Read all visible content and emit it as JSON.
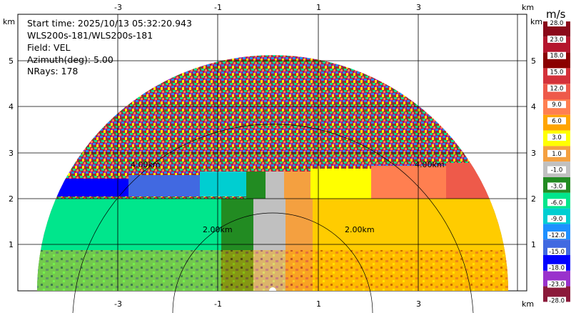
{
  "info": {
    "start_time": "Start time: 2025/10/13 05:32:20.943",
    "instrument": "WLS200s-181/WLS200s-181",
    "field": "Field: VEL",
    "azimuth": "Azimuth(deg): 5.00",
    "nrays": "NRays: 178"
  },
  "axes": {
    "x_unit": "km",
    "y_unit": "km",
    "x_ticks": [
      "-3",
      "-1",
      "1",
      "3"
    ],
    "y_ticks": [
      "1",
      "2",
      "3",
      "4",
      "5"
    ],
    "range_rings": [
      "2.00km",
      "2.00km",
      "4.00km",
      "4.00km"
    ]
  },
  "colorbar": {
    "unit": "m/s",
    "labels": [
      "28.0",
      "23.0",
      "18.0",
      "15.0",
      "12.0",
      "9.0",
      "6.0",
      "3.0",
      "1.0",
      "-1.0",
      "-3.0",
      "-6.0",
      "-9.0",
      "-12.0",
      "-15.0",
      "-18.0",
      "-23.0",
      "-28.0"
    ],
    "colors": [
      "#8b0a1a",
      "#b5162d",
      "#8b0000",
      "#d4323a",
      "#ee5a4a",
      "#ff7f50",
      "#ffa500",
      "#ffff00",
      "#f4a040",
      "#c0c0c0",
      "#228b22",
      "#00e68c",
      "#00ced1",
      "#1e90ff",
      "#4169e1",
      "#0000ff",
      "#9932cc",
      "#8b1a3a"
    ]
  }
}
